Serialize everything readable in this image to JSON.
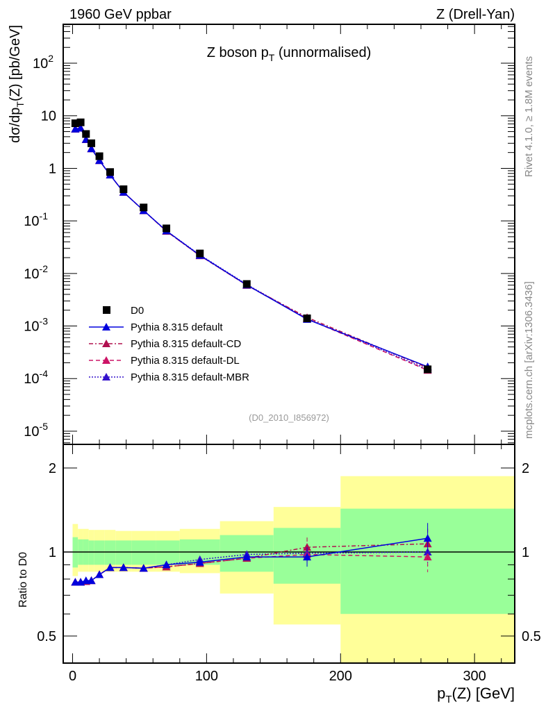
{
  "header": {
    "left": "1960 GeV ppbar",
    "right": "Z (Drell-Yan)"
  },
  "side": {
    "top": "Rivet 4.1.0, ≥ 1.8M events",
    "bottom": "mcplots.cern.ch [arXiv:1306.3436]"
  },
  "chart_data": {
    "type": "line",
    "title": "Z boson p_T (unnormalised)",
    "analysis": "(D0_2010_I856972)",
    "xlabel": "p_T(Z) [GeV]",
    "ylabel": "dσ/dp_T(Z) [pb/GeV]",
    "ratio_ylabel": "Ratio to D0",
    "xlim": [
      -7,
      330
    ],
    "ylim": [
      5.6e-06,
      550
    ],
    "ratio_ylim": [
      0.4,
      2.43
    ],
    "x_ticks": [
      0,
      100,
      200,
      300
    ],
    "y_ticks": [
      "10^{-5}",
      "10^{-4}",
      "10^{-3}",
      "10^{-2}",
      "10^{-1}",
      "1",
      "10",
      "10^{2}"
    ],
    "ratio_ticks": [
      "0.5",
      "1",
      "2"
    ],
    "x": [
      2,
      6,
      10,
      14,
      20,
      28,
      38,
      53,
      70,
      95,
      130,
      175,
      265
    ],
    "data": {
      "name": "D0",
      "values": [
        7.2,
        7.5,
        4.5,
        3.0,
        1.7,
        0.85,
        0.4,
        0.18,
        0.072,
        0.024,
        0.0063,
        0.0014,
        0.00015
      ]
    },
    "series": [
      {
        "name": "Pythia 8.315 default",
        "color": "#0000dd",
        "dash": "",
        "ratio": [
          0.78,
          0.78,
          0.79,
          0.79,
          0.83,
          0.88,
          0.88,
          0.875,
          0.9,
          0.92,
          0.96,
          0.96,
          1.12
        ]
      },
      {
        "name": "Pythia 8.315 default-CD",
        "color": "#b0104f",
        "dash": "6,3,2,3",
        "ratio": [
          0.78,
          0.78,
          0.785,
          0.79,
          0.83,
          0.88,
          0.88,
          0.875,
          0.885,
          0.91,
          0.95,
          1.04,
          1.07
        ]
      },
      {
        "name": "Pythia 8.315 default-DL",
        "color": "#cc1466",
        "dash": "6,4",
        "ratio": [
          0.78,
          0.78,
          0.785,
          0.79,
          0.83,
          0.88,
          0.88,
          0.875,
          0.885,
          0.91,
          0.95,
          0.98,
          0.96
        ]
      },
      {
        "name": "Pythia 8.315 default-MBR",
        "color": "#3311cc",
        "dash": "2,2",
        "ratio": [
          0.78,
          0.78,
          0.785,
          0.79,
          0.83,
          0.88,
          0.88,
          0.875,
          0.9,
          0.94,
          0.98,
          0.99,
          1.0
        ]
      }
    ],
    "bands": {
      "edges": [
        0,
        4,
        8,
        12,
        16,
        24,
        32,
        44,
        62,
        80,
        110,
        150,
        200,
        330
      ],
      "green": [
        [
          0.88,
          1.13
        ],
        [
          0.9,
          1.11
        ],
        [
          0.9,
          1.11
        ],
        [
          0.9,
          1.1
        ],
        [
          0.9,
          1.1
        ],
        [
          0.9,
          1.1
        ],
        [
          0.9,
          1.1
        ],
        [
          0.9,
          1.1
        ],
        [
          0.9,
          1.1
        ],
        [
          0.9,
          1.11
        ],
        [
          0.85,
          1.15
        ],
        [
          0.77,
          1.22
        ],
        [
          0.6,
          1.43
        ]
      ],
      "yellow": [
        [
          0.82,
          1.26
        ],
        [
          0.85,
          1.21
        ],
        [
          0.85,
          1.21
        ],
        [
          0.85,
          1.2
        ],
        [
          0.85,
          1.2
        ],
        [
          0.85,
          1.2
        ],
        [
          0.85,
          1.19
        ],
        [
          0.85,
          1.19
        ],
        [
          0.85,
          1.19
        ],
        [
          0.84,
          1.21
        ],
        [
          0.71,
          1.29
        ],
        [
          0.55,
          1.45
        ],
        [
          0.33,
          1.87
        ]
      ]
    },
    "colors": {
      "green": "#99ff99",
      "yellow": "#ffff99"
    }
  }
}
